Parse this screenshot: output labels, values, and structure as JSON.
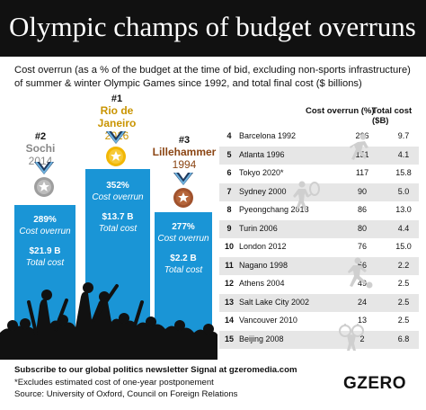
{
  "header": {
    "title": "Olympic champs of budget overruns"
  },
  "subtitle": "Cost overrun (as a % of the budget at the time of bid, excluding non-sports infrastructure) of summer & winter Olympic Games since 1992, and total final cost ($ billions)",
  "podium": {
    "first": {
      "rank": "#1",
      "city": "Rio de Janeiro",
      "year": "2016",
      "overrun": "352%",
      "overrun_label": "Cost overrun",
      "cost": "$13.7 B",
      "cost_label": "Total cost"
    },
    "second": {
      "rank": "#2",
      "city": "Sochi",
      "year": "2014",
      "overrun": "289%",
      "overrun_label": "Cost overrun",
      "cost": "$21.9 B",
      "cost_label": "Total cost"
    },
    "third": {
      "rank": "#3",
      "city": "Lillehammer",
      "year": "1994",
      "overrun": "277%",
      "overrun_label": "Cost overrun",
      "cost": "$2.2 B",
      "cost_label": "Total cost"
    }
  },
  "colors": {
    "bar": "#1a95d6",
    "header": "#111111",
    "gold": "#f2b705",
    "silver": "#9e9e9e",
    "bronze": "#a0522d",
    "row_alt": "#e6e6e6"
  },
  "chart_data": {
    "type": "table",
    "columns": [
      "",
      "",
      "Cost overrun (%)",
      "Total cost ($B)"
    ],
    "rows": [
      [
        "4",
        "Barcelona 1992",
        266,
        9.7
      ],
      [
        "5",
        "Atlanta 1996",
        151,
        4.1
      ],
      [
        "6",
        "Tokyo 2020*",
        117,
        15.8
      ],
      [
        "7",
        "Sydney 2000",
        90,
        5.0
      ],
      [
        "8",
        "Pyeongchang 2018",
        86,
        13.0
      ],
      [
        "9",
        "Turin 2006",
        80,
        4.4
      ],
      [
        "10",
        "London 2012",
        76,
        15.0
      ],
      [
        "11",
        "Nagano 1998",
        56,
        2.2
      ],
      [
        "12",
        "Athens 2004",
        49,
        2.5
      ],
      [
        "13",
        "Salt Lake City 2002",
        24,
        2.5
      ],
      [
        "14",
        "Vancouver 2010",
        13,
        2.5
      ],
      [
        "15",
        "Beijing 2008",
        2,
        6.8
      ]
    ],
    "display": {
      "overrun": [
        "266",
        "151",
        "117",
        "90",
        "86",
        "80",
        "76",
        "56",
        "49",
        "24",
        "13",
        "2"
      ],
      "cost": [
        "9.7",
        "4.1",
        "15.8",
        "5.0",
        "13.0",
        "4.4",
        "15.0",
        "2.2",
        "2.5",
        "2.5",
        "2.5",
        "6.8"
      ]
    }
  },
  "table_headers": {
    "overrun": "Cost overrun (%)",
    "cost": "Total cost ($B)"
  },
  "footer": {
    "subscribe": "Subscribe to our global politics newsletter Signal at gzeromedia.com",
    "note": "*Excludes estimated cost of one-year postponement",
    "source": "Source: University of Oxford, Council on Foreign Relations"
  },
  "logo": "GZERO"
}
